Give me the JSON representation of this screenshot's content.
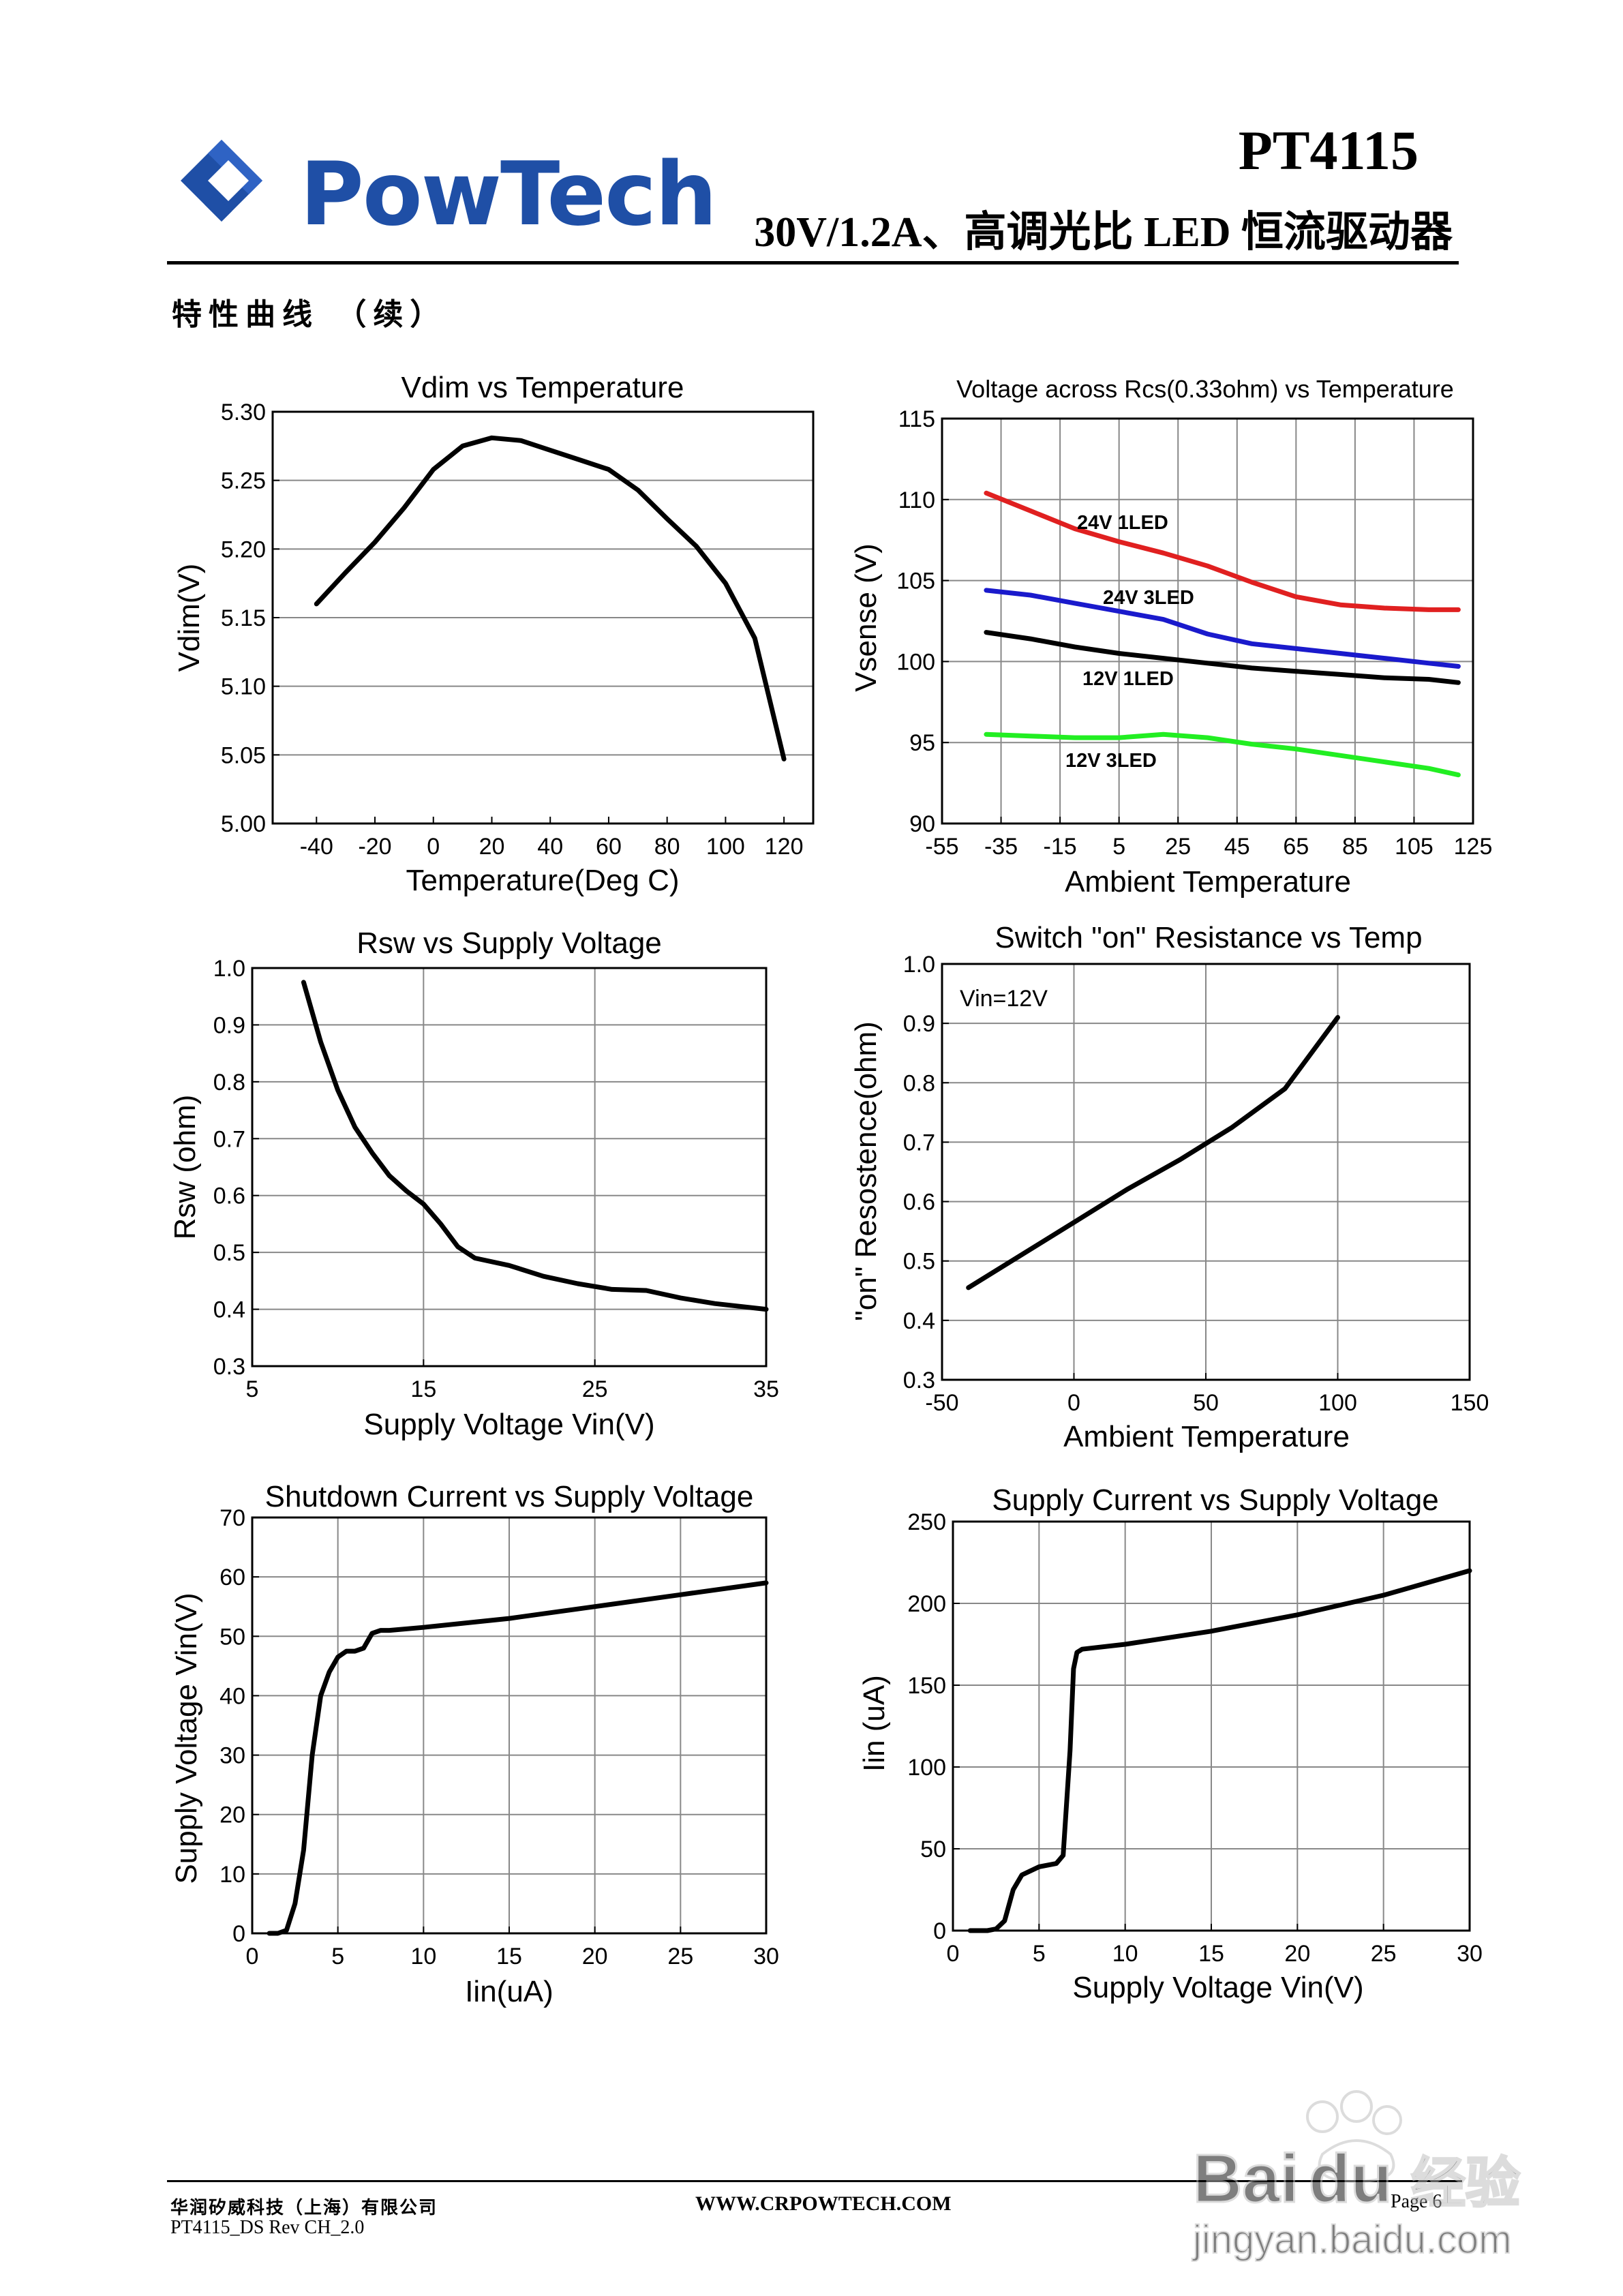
{
  "header": {
    "logo_text": "PowTech",
    "part_number": "PT4115",
    "subtitle": "30V/1.2A、高调光比 LED 恒流驱动器"
  },
  "section_title": "特性曲线 （续）",
  "footer": {
    "company": "华润矽威科技（上海）有限公司",
    "doc": "PT4115_DS Rev CH_2.0",
    "url": "WWW.CRPOWTECH.COM",
    "page": "Page 6"
  },
  "watermark": {
    "brand": "Baidu经验",
    "url": "jingyan.baidu.com"
  },
  "colors": {
    "red": "#e02020",
    "blue": "#1a1acc",
    "black": "#000000",
    "green": "#22ee22",
    "logo_blue": "#1f4fa6"
  },
  "chart_data": [
    {
      "type": "line",
      "title": "Vdim vs Temperature",
      "xlabel": "Temperature(Deg C)",
      "ylabel": "Vdim(V)",
      "xticks": [
        "-40",
        "-20",
        "0",
        "20",
        "40",
        "60",
        "80",
        "100",
        "120"
      ],
      "yticks": [
        "5.30",
        "5.25",
        "5.20",
        "5.15",
        "5.10",
        "5.05",
        "5.00"
      ],
      "xlim": [
        -55,
        130
      ],
      "ylim": [
        5.0,
        5.3
      ],
      "grid": "horizontal",
      "series": [
        {
          "color": "#000000",
          "x": [
            -40,
            -30,
            -20,
            -10,
            0,
            10,
            20,
            30,
            40,
            50,
            60,
            70,
            80,
            90,
            100,
            110,
            120
          ],
          "y": [
            5.16,
            5.183,
            5.205,
            5.23,
            5.258,
            5.275,
            5.281,
            5.279,
            5.272,
            5.265,
            5.258,
            5.243,
            5.222,
            5.202,
            5.175,
            5.135,
            5.047
          ]
        }
      ]
    },
    {
      "type": "line",
      "title": "Voltage across Rcs(0.33ohm) vs Temperature",
      "xlabel": "Ambient Temperature",
      "ylabel": "Vsense (V)",
      "xticks": [
        "-55",
        "-35",
        "-15",
        "5",
        "25",
        "45",
        "65",
        "85",
        "105",
        "125"
      ],
      "yticks": [
        "115",
        "110",
        "105",
        "100",
        "95",
        "90"
      ],
      "xlim": [
        -55,
        125
      ],
      "ylim": [
        90,
        115
      ],
      "grid": "both",
      "series": [
        {
          "name": "24V  1LED",
          "color": "#e02020",
          "x": [
            -40,
            -25,
            -10,
            5,
            20,
            35,
            50,
            65,
            80,
            95,
            110,
            120
          ],
          "y": [
            110.4,
            109.3,
            108.2,
            107.4,
            106.7,
            105.9,
            104.9,
            104.0,
            103.5,
            103.3,
            103.2,
            103.2
          ]
        },
        {
          "name": "24V  3LED",
          "color": "#1a1acc",
          "x": [
            -40,
            -25,
            -10,
            5,
            20,
            35,
            50,
            65,
            80,
            95,
            110,
            120
          ],
          "y": [
            104.4,
            104.1,
            103.6,
            103.1,
            102.6,
            101.7,
            101.1,
            100.8,
            100.5,
            100.2,
            99.9,
            99.7
          ]
        },
        {
          "name": "12V  1LED",
          "color": "#000000",
          "x": [
            -40,
            -25,
            -10,
            5,
            20,
            35,
            50,
            65,
            80,
            95,
            110,
            120
          ],
          "y": [
            101.8,
            101.4,
            100.9,
            100.5,
            100.2,
            99.9,
            99.6,
            99.4,
            99.2,
            99.0,
            98.9,
            98.7
          ]
        },
        {
          "name": "12V  3LED",
          "color": "#22ee22",
          "x": [
            -40,
            -25,
            -10,
            5,
            20,
            35,
            50,
            65,
            80,
            95,
            110,
            120
          ],
          "y": [
            95.5,
            95.4,
            95.3,
            95.3,
            95.5,
            95.3,
            94.9,
            94.6,
            94.2,
            93.8,
            93.4,
            93.0
          ]
        }
      ]
    },
    {
      "type": "line",
      "title": "Rsw vs Supply Voltage",
      "xlabel": "Supply Voltage Vin(V)",
      "ylabel": "Rsw (ohm)",
      "xticks": [
        "5",
        "15",
        "25",
        "35"
      ],
      "yticks": [
        "1.0",
        "0.9",
        "0.8",
        "0.7",
        "0.6",
        "0.5",
        "0.4",
        "0.3"
      ],
      "xlim": [
        5,
        35
      ],
      "ylim": [
        0.3,
        1.0
      ],
      "grid": "both",
      "series": [
        {
          "color": "#000000",
          "x": [
            8,
            9,
            10,
            11,
            12,
            13,
            14,
            15,
            16,
            17,
            18,
            20,
            22,
            24,
            26,
            28,
            30,
            32,
            35
          ],
          "y": [
            0.975,
            0.87,
            0.785,
            0.72,
            0.675,
            0.635,
            0.608,
            0.585,
            0.55,
            0.51,
            0.49,
            0.477,
            0.458,
            0.445,
            0.435,
            0.433,
            0.42,
            0.41,
            0.4
          ]
        }
      ]
    },
    {
      "type": "line",
      "title": "Switch \"on\" Resistance vs Temp",
      "annotation": "Vin=12V",
      "xlabel": "Ambient Temperature",
      "ylabel": "\"on\" Resostence(ohm)",
      "xticks": [
        "-50",
        "0",
        "50",
        "100",
        "150"
      ],
      "yticks": [
        "1.0",
        "0.9",
        "0.8",
        "0.7",
        "0.6",
        "0.5",
        "0.4",
        "0.3"
      ],
      "xlim": [
        -50,
        150
      ],
      "ylim": [
        0.3,
        1.0
      ],
      "grid": "both",
      "series": [
        {
          "color": "#000000",
          "x": [
            -40,
            -20,
            0,
            20,
            40,
            60,
            80,
            100
          ],
          "y": [
            0.455,
            0.51,
            0.565,
            0.62,
            0.67,
            0.725,
            0.79,
            0.91
          ]
        }
      ]
    },
    {
      "type": "line",
      "title": "Shutdown Current vs Supply Voltage",
      "xlabel": "Iin(uA)",
      "ylabel": "Supply Voltage Vin(V)",
      "xticks": [
        "0",
        "5",
        "10",
        "15",
        "20",
        "25",
        "30"
      ],
      "yticks": [
        "70",
        "60",
        "50",
        "40",
        "30",
        "20",
        "10",
        "0"
      ],
      "xlim": [
        0,
        30
      ],
      "ylim": [
        0,
        70
      ],
      "grid": "both",
      "series": [
        {
          "color": "#000000",
          "x": [
            1,
            1.5,
            2,
            2.5,
            3,
            3.5,
            4,
            4.5,
            5,
            5.5,
            6,
            6.5,
            7,
            7.5,
            8,
            10,
            15,
            20,
            25,
            30
          ],
          "y": [
            0,
            0,
            0.5,
            5,
            14,
            30,
            40,
            44,
            46.5,
            47.5,
            47.5,
            48,
            50.5,
            51,
            51,
            51.5,
            53,
            55,
            57,
            59
          ]
        }
      ]
    },
    {
      "type": "line",
      "title": "Supply Current vs Supply Voltage",
      "xlabel": "Supply Voltage Vin(V)",
      "ylabel": "Iin (uA)",
      "xticks": [
        "0",
        "5",
        "10",
        "15",
        "20",
        "25",
        "30"
      ],
      "yticks": [
        "250",
        "200",
        "150",
        "100",
        "50",
        "0"
      ],
      "xlim": [
        0,
        30
      ],
      "ylim": [
        0,
        250
      ],
      "grid": "both",
      "series": [
        {
          "color": "#000000",
          "x": [
            1,
            2,
            2.5,
            3,
            3.5,
            4,
            5,
            6,
            6.4,
            6.8,
            7,
            7.2,
            7.5,
            10,
            15,
            20,
            25,
            30
          ],
          "y": [
            0,
            0,
            1,
            6,
            25,
            34,
            39,
            41,
            46,
            110,
            160,
            170,
            172,
            175,
            183,
            193,
            205,
            220
          ]
        }
      ]
    }
  ]
}
